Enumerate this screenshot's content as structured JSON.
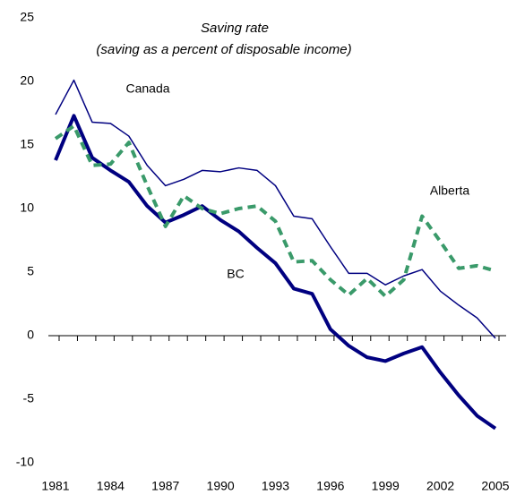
{
  "chart_data": {
    "type": "line",
    "title": "Saving rate",
    "subtitle": "(saving as a percent of disposable income)",
    "x": [
      1981,
      1982,
      1983,
      1984,
      1985,
      1986,
      1987,
      1988,
      1989,
      1990,
      1991,
      1992,
      1993,
      1994,
      1995,
      1996,
      1997,
      1998,
      1999,
      2000,
      2001,
      2002,
      2003,
      2004,
      2005
    ],
    "series": [
      {
        "name": "Canada",
        "color": "#000080",
        "width": 1.5,
        "dashed": false,
        "values": [
          17.4,
          20.1,
          16.8,
          16.7,
          15.7,
          13.4,
          11.8,
          12.3,
          13.0,
          12.9,
          13.2,
          13.0,
          11.8,
          9.4,
          9.2,
          7.0,
          4.9,
          4.9,
          4.0,
          4.7,
          5.2,
          3.5,
          2.4,
          1.4,
          -0.2
        ]
      },
      {
        "name": "BC",
        "color": "#000080",
        "width": 4,
        "dashed": false,
        "values": [
          13.8,
          17.3,
          14.0,
          13.0,
          12.1,
          10.2,
          8.9,
          9.5,
          10.2,
          9.1,
          8.2,
          6.9,
          5.7,
          3.7,
          3.3,
          0.5,
          -0.8,
          -1.7,
          -2.0,
          -1.4,
          -0.9,
          -2.9,
          -4.7,
          -6.3,
          -7.3
        ]
      },
      {
        "name": "Alberta",
        "color": "#3a9a6a",
        "width": 4,
        "dashed": true,
        "values": [
          15.5,
          16.5,
          13.4,
          13.5,
          15.2,
          11.8,
          8.6,
          11.0,
          10.0,
          9.6,
          10.0,
          10.2,
          9.0,
          5.8,
          5.9,
          4.4,
          3.2,
          4.5,
          3.1,
          4.4,
          9.4,
          7.4,
          5.3,
          5.5,
          5.1
        ]
      }
    ],
    "xlim": [
      1981,
      2005
    ],
    "xticks": [
      1981,
      1984,
      1987,
      1990,
      1993,
      1996,
      1999,
      2002,
      2005
    ],
    "ylim": [
      -10,
      25
    ],
    "yticks": [
      -10,
      -5,
      0,
      5,
      10,
      15,
      20,
      25
    ]
  }
}
